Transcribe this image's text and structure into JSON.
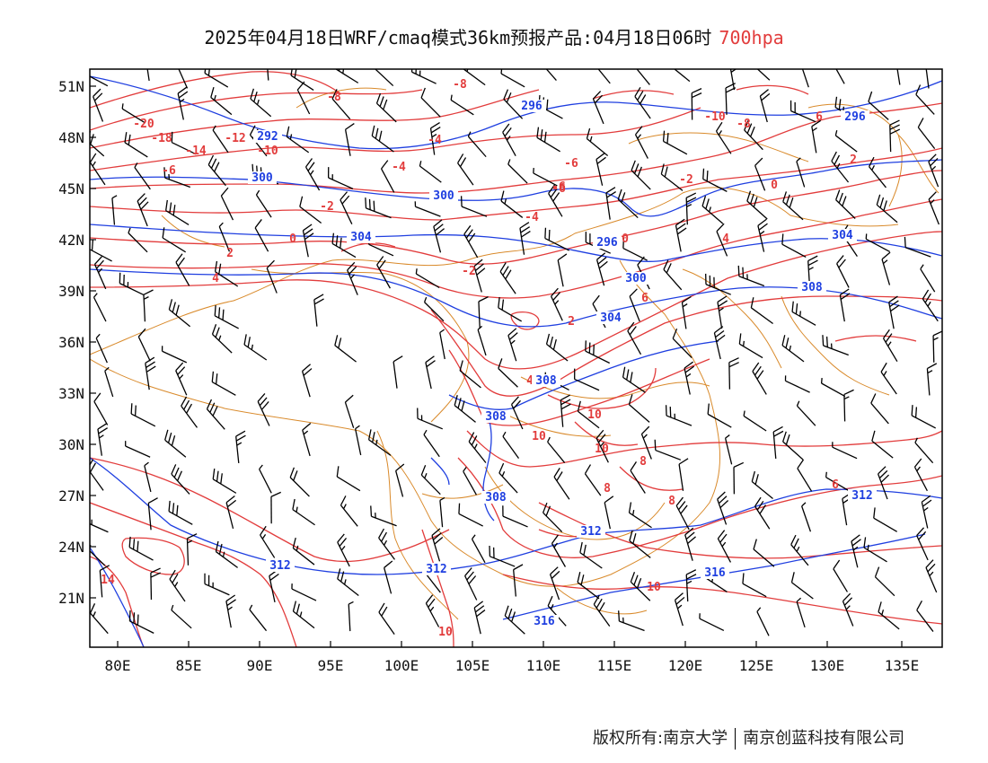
{
  "title": {
    "main": "2025年04月18日WRF/cmaq模式36km预报产品:04月18日06时",
    "level": "700hpa"
  },
  "footer": {
    "left": "版权所有:南京大学",
    "right": "南京创蓝科技有限公司"
  },
  "colors": {
    "temperature": "#e23c3c",
    "height": "#1f3fe0",
    "border": "#d98a2b",
    "wind": "#000000"
  },
  "axes": {
    "lat_labels": [
      "51N",
      "48N",
      "45N",
      "42N",
      "39N",
      "36N",
      "33N",
      "30N",
      "27N",
      "24N",
      "21N"
    ],
    "lon_labels": [
      "80E",
      "85E",
      "90E",
      "95E",
      "100E",
      "105E",
      "110E",
      "115E",
      "120E",
      "125E",
      "130E",
      "135E"
    ]
  },
  "temperature_labels": [
    "-20",
    "-18",
    "-14",
    "-12",
    "-10",
    "-8",
    "-8",
    "-6",
    "-6",
    "-6",
    "-4",
    "-4",
    "-4",
    "-2",
    "-2",
    "-2",
    "0",
    "0",
    "0",
    "2",
    "2",
    "2",
    "4",
    "4",
    "4",
    "6",
    "6",
    "8",
    "8",
    "8",
    "10",
    "10",
    "10",
    "10",
    "14",
    "-10",
    "-8",
    "-6",
    "6",
    "10"
  ],
  "height_labels": [
    "292",
    "296",
    "296",
    "296",
    "300",
    "300",
    "300",
    "304",
    "304",
    "304",
    "308",
    "308",
    "308",
    "308",
    "312",
    "312",
    "312",
    "312",
    "316",
    "316"
  ]
}
